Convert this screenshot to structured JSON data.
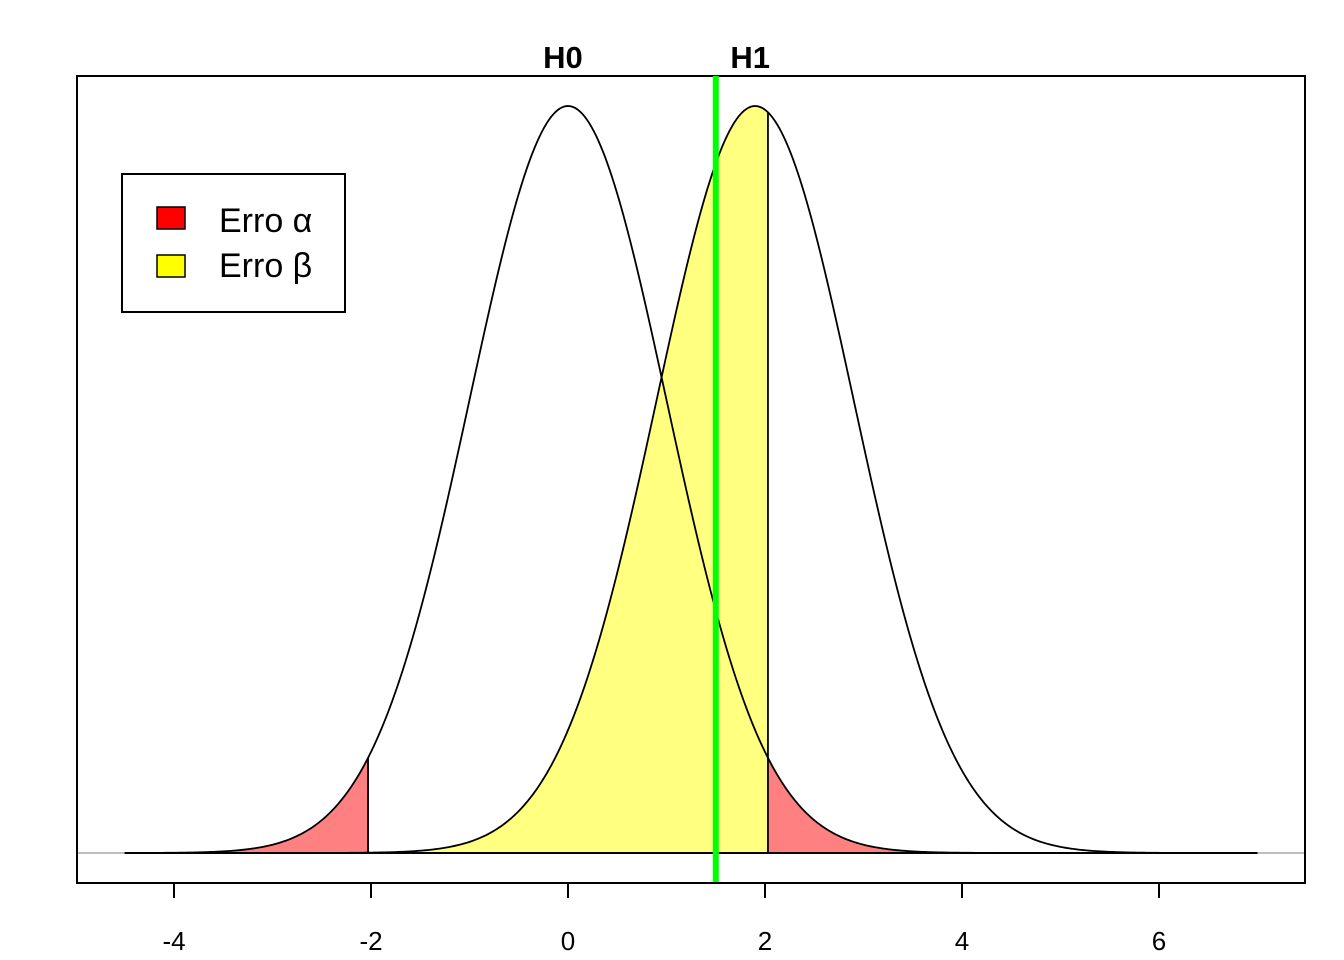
{
  "chart_data": {
    "type": "area",
    "xlim": [
      -5,
      7.5
    ],
    "ylim": [
      0,
      0.4
    ],
    "grid": false,
    "legend_position": "top-left",
    "x_ticks": [
      "-4",
      "-2",
      "0",
      "2",
      "4",
      "6"
    ],
    "x_tick_values": [
      -4,
      -2,
      0,
      2,
      4,
      6
    ],
    "annotations": [
      {
        "text": "H0",
        "x": 0
      },
      {
        "text": "H1",
        "x": 1.9
      }
    ],
    "curves": [
      {
        "label": "H0",
        "mean": 0,
        "sd": 1,
        "x_range": [
          -4.5,
          7
        ]
      },
      {
        "label": "H1",
        "mean": 1.9,
        "sd": 1,
        "x_range": [
          -4.5,
          7
        ]
      }
    ],
    "critical_values": [
      -2.03,
      2.03
    ],
    "test_statistic": 1.5,
    "shaded_regions": [
      {
        "name": "Erro α",
        "curve": "H0",
        "from": -4.5,
        "to": -2.03,
        "color": "#ff8080"
      },
      {
        "name": "Erro α",
        "curve": "H0",
        "from": 2.03,
        "to": 7,
        "color": "#ff8080"
      },
      {
        "name": "Erro β",
        "curve": "H1",
        "from": -2.03,
        "to": 2.03,
        "color": "#ffff80"
      }
    ],
    "legend": [
      {
        "label": "Erro α",
        "color": "#ff0000"
      },
      {
        "label": "Erro β",
        "color": "#ffff00"
      }
    ],
    "colors": {
      "alpha_fill": "#ff8080",
      "beta_fill": "#ffff80",
      "vline": "#00ff00",
      "baseline": "#bebebe"
    }
  }
}
